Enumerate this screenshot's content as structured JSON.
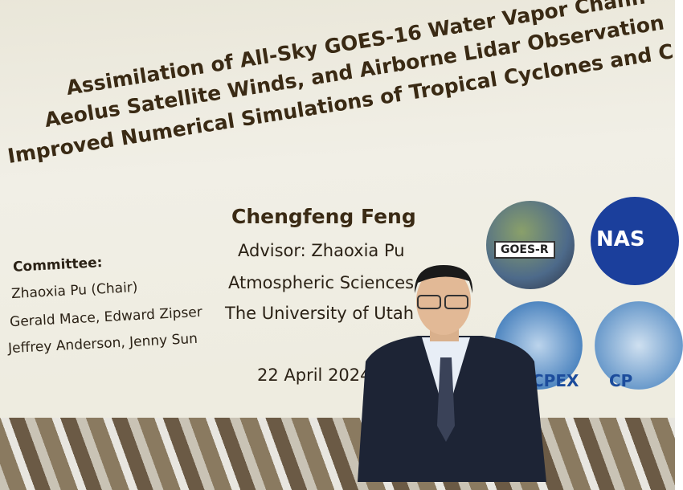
{
  "slide": {
    "title_lines": [
      "Assimilation of All-Sky GOES-16 Water Vapor Chann",
      "Aeolus Satellite Winds, and Airborne Lidar Observation",
      "Improved Numerical Simulations of Tropical Cyclones and C"
    ],
    "presenter": "Chengfeng Feng",
    "advisor": "Advisor: Zhaoxia Pu",
    "department": "Atmospheric Sciences",
    "university": "The University of Utah",
    "committee_heading": "Committee:",
    "committee": [
      "Zhaoxia Pu (Chair)",
      "Gerald Mace, Edward Zipser",
      "Jeffrey Anderson, Jenny Sun"
    ],
    "date": "22 April 2024",
    "logos": {
      "goes": "GOES-R",
      "nasa": "NAS",
      "cpex": "CPEX",
      "cpex_partial": "CP"
    }
  }
}
